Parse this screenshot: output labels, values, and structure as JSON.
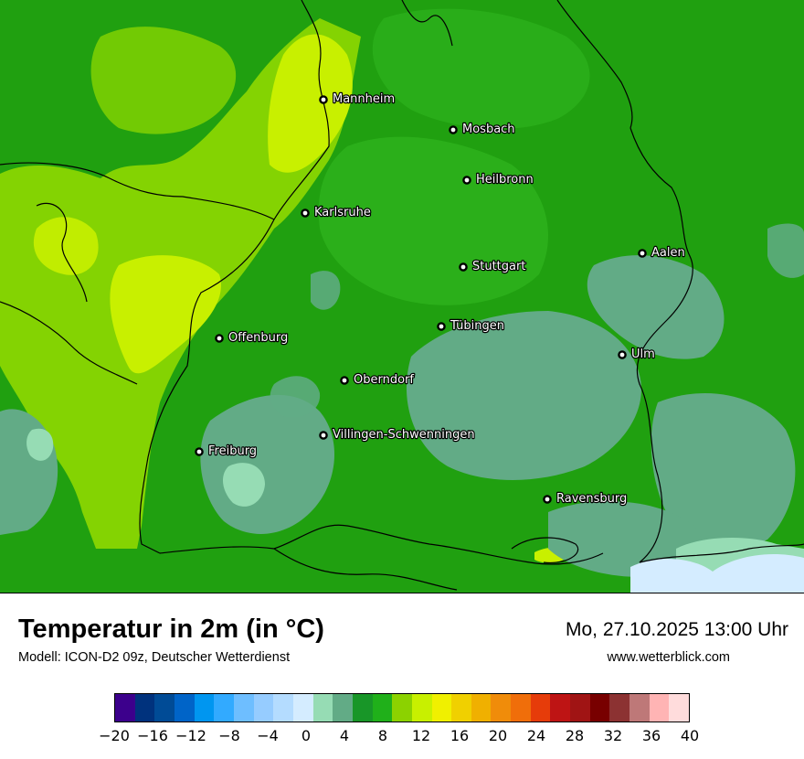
{
  "title": "Temperatur in 2m (in °C)",
  "subtitle": "Modell: ICON-D2 09z, Deutscher Wetterdienst",
  "datetime": "Mo, 27.10.2025 13:00 Uhr",
  "website": "www.wetterblick.com",
  "map": {
    "cities": [
      {
        "name": "Mannheim"
      },
      {
        "name": "Mosbach"
      },
      {
        "name": "Heilbronn"
      },
      {
        "name": "Karlsruhe"
      },
      {
        "name": "Stuttgart"
      },
      {
        "name": "Aalen"
      },
      {
        "name": "Tübingen"
      },
      {
        "name": "Offenburg"
      },
      {
        "name": "Ulm"
      },
      {
        "name": "Oberndorf"
      },
      {
        "name": "Villingen-Schwenningen"
      },
      {
        "name": "Freiburg"
      },
      {
        "name": "Ravensburg"
      }
    ],
    "colors": {
      "base": "#20a010",
      "yellow_green": "#c8f000",
      "light_green": "#96dc00",
      "mid_green": "#2cb01c",
      "grey_green": "#62ab86",
      "mint": "#96dcb4",
      "pale_blue": "#d4ecff"
    }
  },
  "legend": {
    "ticks": [
      "−20",
      "−16",
      "−12",
      "−8",
      "−4",
      "0",
      "4",
      "8",
      "12",
      "16",
      "20",
      "24",
      "28",
      "32",
      "36",
      "40"
    ],
    "colors": [
      "#3c008c",
      "#00327d",
      "#004b96",
      "#0064c8",
      "#0096f0",
      "#32aaff",
      "#6ebeff",
      "#96ccff",
      "#b4dcff",
      "#d4ecff",
      "#96dcb4",
      "#62ab86",
      "#189628",
      "#20b01a",
      "#8cd200",
      "#c8f000",
      "#f0f000",
      "#f0d000",
      "#f0b000",
      "#f08c0a",
      "#f06e0a",
      "#e63c0a",
      "#be1414",
      "#a01414",
      "#780000",
      "#8c3232",
      "#be7878",
      "#ffb4b4",
      "#ffdcdc"
    ]
  }
}
